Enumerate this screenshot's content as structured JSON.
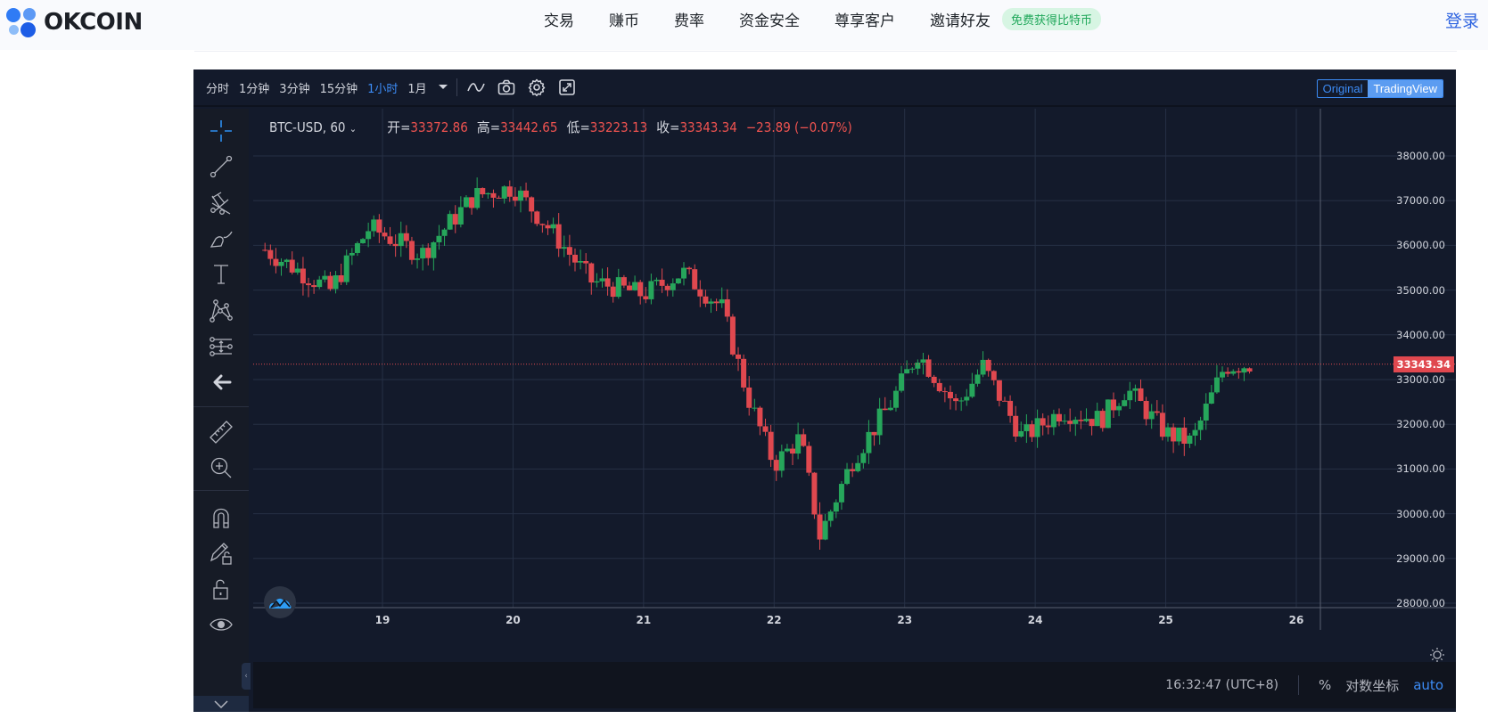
{
  "header": {
    "logo_text": "OKCOIN",
    "nav": [
      "交易",
      "赚币",
      "费率",
      "资金安全",
      "尊享客户",
      "邀请好友"
    ],
    "promo_badge": "免费获得比特币",
    "login": "登录"
  },
  "toolbar": {
    "intervals": [
      {
        "label": "分时",
        "active": false
      },
      {
        "label": "1分钟",
        "active": false
      },
      {
        "label": "3分钟",
        "active": false
      },
      {
        "label": "15分钟",
        "active": false
      },
      {
        "label": "1小时",
        "active": true
      },
      {
        "label": "1月",
        "active": false
      }
    ],
    "icons": [
      "indicator-wave-icon",
      "camera-icon",
      "settings-gear-icon",
      "fullscreen-icon"
    ],
    "mode_original": "Original",
    "mode_tradingview": "TradingView",
    "active_mode": "TradingView"
  },
  "legend": {
    "symbol": "BTC-USD, 60",
    "open_label": "开=",
    "open": "33372.86",
    "high_label": "高=",
    "high": "33442.65",
    "low_label": "低=",
    "low": "33223.13",
    "close_label": "收=",
    "close": "33343.34",
    "change": "−23.89 (−0.07%)"
  },
  "left_tools": [
    "crosshair-icon",
    "trend-line-icon",
    "pitchfork-icon",
    "brush-icon",
    "text-icon",
    "pattern-icon",
    "prediction-icon",
    "back-arrow-icon",
    "ruler-icon",
    "zoom-in-icon",
    "magnet-icon",
    "lock-drawing-icon",
    "unlock-icon",
    "eye-icon"
  ],
  "price_axis": {
    "labels": [
      "38000.00",
      "37000.00",
      "36000.00",
      "35000.00",
      "34000.00",
      "33000.00",
      "32000.00",
      "31000.00",
      "30000.00",
      "29000.00",
      "28000.00"
    ],
    "current_price": "33343.34"
  },
  "time_axis": {
    "labels": [
      "19",
      "20",
      "21",
      "22",
      "23",
      "24",
      "25",
      "26"
    ]
  },
  "bottom_bar": {
    "time": "16:32:47 (UTC+8)",
    "percent": "%",
    "log_scale": "对数坐标",
    "auto": "auto"
  },
  "colors": {
    "up": "#26a65b",
    "down": "#e0484f",
    "background": "#131a2b",
    "accent": "#3c8cf6"
  },
  "chart_data": {
    "type": "candlestick",
    "title": "BTC-USD, 60",
    "xlabel": "",
    "ylabel": "",
    "ylim": [
      27800,
      38600
    ],
    "x_ticks": [
      "19",
      "20",
      "21",
      "22",
      "23",
      "24",
      "25",
      "26"
    ],
    "y_ticks": [
      28000,
      29000,
      30000,
      31000,
      32000,
      33000,
      34000,
      35000,
      36000,
      37000,
      38000
    ],
    "current_price": 33343.34,
    "grid": true,
    "close_path_approx": [
      {
        "x": "18.1",
        "close": 35900
      },
      {
        "x": "18.6",
        "close": 35000
      },
      {
        "x": "18.9",
        "close": 36400
      },
      {
        "x": "19.3",
        "close": 35800
      },
      {
        "x": "19.7",
        "close": 37100
      },
      {
        "x": "20.0",
        "close": 37300
      },
      {
        "x": "20.3",
        "close": 36300
      },
      {
        "x": "20.6",
        "close": 35200
      },
      {
        "x": "21.0",
        "close": 34900
      },
      {
        "x": "21.3",
        "close": 35400
      },
      {
        "x": "21.6",
        "close": 34600
      },
      {
        "x": "21.8",
        "close": 32600
      },
      {
        "x": "22.0",
        "close": 31100
      },
      {
        "x": "22.2",
        "close": 31700
      },
      {
        "x": "22.35",
        "close": 29500
      },
      {
        "x": "22.6",
        "close": 31200
      },
      {
        "x": "22.9",
        "close": 32500
      },
      {
        "x": "23.1",
        "close": 33600
      },
      {
        "x": "23.4",
        "close": 32400
      },
      {
        "x": "23.6",
        "close": 33300
      },
      {
        "x": "23.9",
        "close": 31700
      },
      {
        "x": "24.2",
        "close": 32300
      },
      {
        "x": "24.5",
        "close": 32100
      },
      {
        "x": "24.7",
        "close": 32800
      },
      {
        "x": "25.0",
        "close": 31800
      },
      {
        "x": "25.2",
        "close": 31600
      },
      {
        "x": "25.45",
        "close": 33300
      },
      {
        "x": "25.65",
        "close": 33343
      }
    ]
  }
}
